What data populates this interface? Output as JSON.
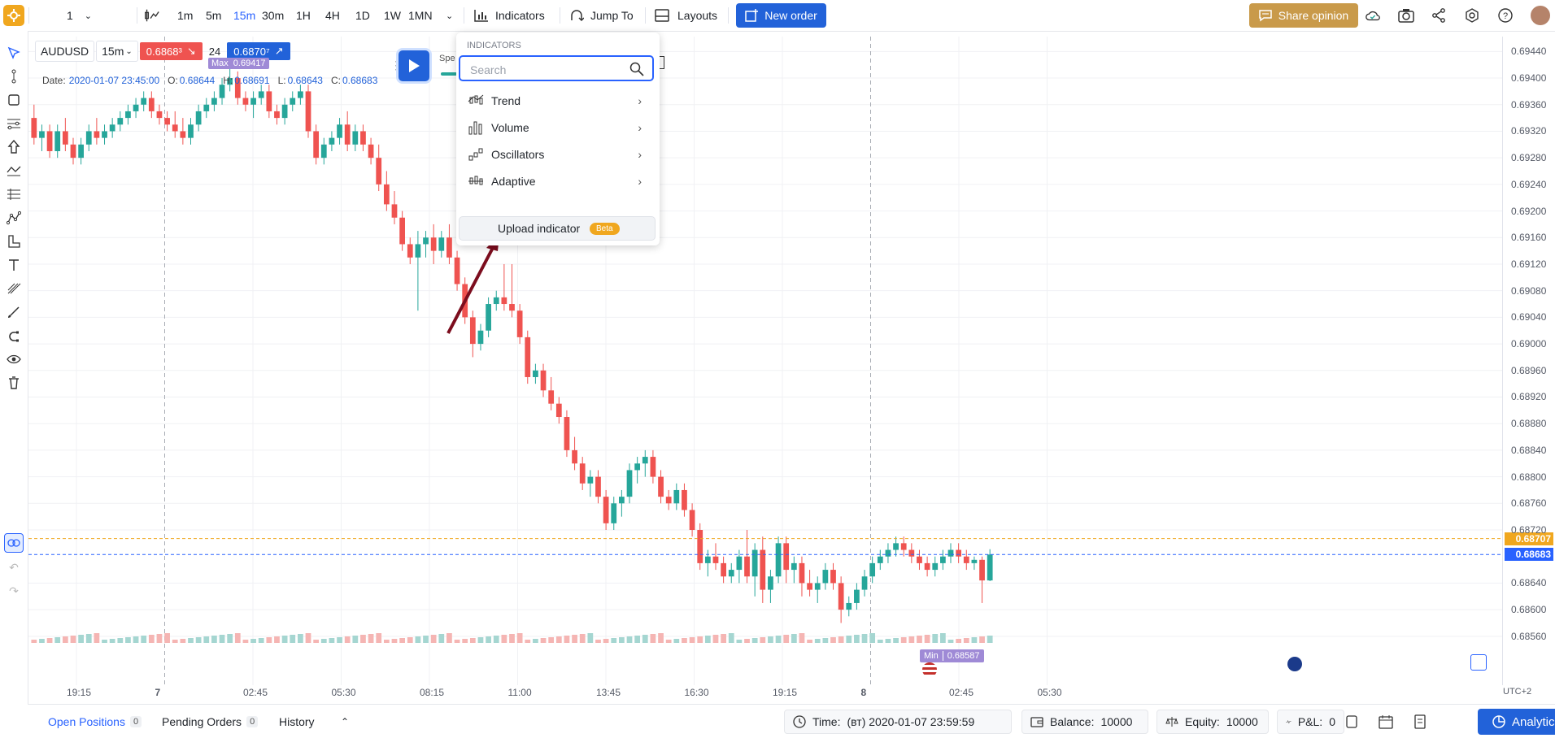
{
  "toolbar": {
    "chart_count": "1",
    "timeframes": [
      "1m",
      "5m",
      "15m",
      "30m",
      "1H",
      "4H",
      "1D",
      "1W",
      "1MN"
    ],
    "active_timeframe": "15m",
    "indicators_label": "Indicators",
    "jump_to_label": "Jump To",
    "layouts_label": "Layouts",
    "new_order_label": "New order",
    "share_opinion_label": "Share opinion"
  },
  "legend": {
    "symbol": "AUDUSD",
    "interval": "15m",
    "bid": "0.6868³",
    "spread": "24",
    "ask": "0.6870⁷",
    "max_label": "Max",
    "max_value": "0.69417",
    "speed_label": "Spe",
    "ohlc": {
      "date_label": "Date:",
      "date": "2020-01-07 23:45:00",
      "o_label": "O:",
      "o": "0.68644",
      "h_label": "H:",
      "h": "0.68691",
      "l_label": "L:",
      "l": "0.68643",
      "c_label": "C:",
      "c": "0.68683"
    }
  },
  "indicators_menu": {
    "header": "INDICATORS",
    "search_placeholder": "Search",
    "items": [
      {
        "label": "Trend",
        "icon": "trend-icon"
      },
      {
        "label": "Volume",
        "icon": "volume-icon"
      },
      {
        "label": "Oscillators",
        "icon": "oscillators-icon"
      },
      {
        "label": "Adaptive",
        "icon": "adaptive-icon"
      }
    ],
    "upload_label": "Upload indicator",
    "beta_label": "Beta"
  },
  "price_axis": {
    "labels": [
      "0.69440",
      "0.69400",
      "0.69360",
      "0.69320",
      "0.69280",
      "0.69240",
      "0.69200",
      "0.69160",
      "0.69120",
      "0.69080",
      "0.69040",
      "0.69000",
      "0.68960",
      "0.68920",
      "0.68880",
      "0.68840",
      "0.68800",
      "0.68760",
      "0.68720",
      "0.68640",
      "0.68600",
      "0.68560"
    ],
    "ask_tag": "0.68707",
    "bid_tag": "0.68683",
    "timezone": "UTC+2",
    "colors": {
      "ask": "#f0a71f",
      "bid": "#2962ff"
    }
  },
  "time_axis": {
    "labels": [
      "19:15",
      "7",
      "02:45",
      "05:30",
      "08:15",
      "11:00",
      "13:45",
      "16:30",
      "19:15",
      "8",
      "02:45",
      "05:30"
    ]
  },
  "min_marker": {
    "label": "Min",
    "value": "0.68587"
  },
  "bottom": {
    "open_positions_label": "Open Positions",
    "open_positions_count": "0",
    "pending_orders_label": "Pending Orders",
    "pending_orders_count": "0",
    "history_label": "History",
    "time_label": "Time:",
    "time_value": "(вт) 2020-01-07 23:59:59",
    "balance_label": "Balance:",
    "balance_value": "10000",
    "equity_label": "Equity:",
    "equity_value": "10000",
    "pnl_label": "P&L:",
    "pnl_value": "0",
    "analytics_label": "Analytics"
  },
  "chart_data": {
    "type": "candlestick",
    "symbol": "AUDUSD",
    "interval": "15m",
    "ylim": [
      0.6855,
      0.6946
    ],
    "candles": [
      [
        0.6934,
        0.6936,
        0.693,
        0.6931
      ],
      [
        0.6931,
        0.6933,
        0.6929,
        0.6932
      ],
      [
        0.6932,
        0.6933,
        0.6928,
        0.6929
      ],
      [
        0.6929,
        0.6933,
        0.6928,
        0.6932
      ],
      [
        0.6932,
        0.6934,
        0.6929,
        0.693
      ],
      [
        0.693,
        0.6931,
        0.6927,
        0.6928
      ],
      [
        0.6928,
        0.6931,
        0.6927,
        0.693
      ],
      [
        0.693,
        0.6933,
        0.6929,
        0.6932
      ],
      [
        0.6932,
        0.6934,
        0.693,
        0.6931
      ],
      [
        0.6931,
        0.6933,
        0.693,
        0.6932
      ],
      [
        0.6932,
        0.6934,
        0.6931,
        0.6933
      ],
      [
        0.6933,
        0.6935,
        0.6932,
        0.6934
      ],
      [
        0.6934,
        0.6936,
        0.6933,
        0.6935
      ],
      [
        0.6935,
        0.6937,
        0.6934,
        0.6936
      ],
      [
        0.6936,
        0.6938,
        0.6935,
        0.6937
      ],
      [
        0.6937,
        0.6938,
        0.6934,
        0.6935
      ],
      [
        0.6935,
        0.6936,
        0.6933,
        0.6934
      ],
      [
        0.6934,
        0.6935,
        0.6932,
        0.6933
      ],
      [
        0.6933,
        0.6935,
        0.6931,
        0.6932
      ],
      [
        0.6932,
        0.6934,
        0.693,
        0.6931
      ],
      [
        0.6931,
        0.6934,
        0.693,
        0.6933
      ],
      [
        0.6933,
        0.6936,
        0.6932,
        0.6935
      ],
      [
        0.6935,
        0.6937,
        0.6934,
        0.6936
      ],
      [
        0.6936,
        0.6938,
        0.6935,
        0.6937
      ],
      [
        0.6937,
        0.694,
        0.6936,
        0.6939
      ],
      [
        0.6939,
        0.6942,
        0.6938,
        0.694
      ],
      [
        0.694,
        0.6941,
        0.6936,
        0.6937
      ],
      [
        0.6937,
        0.6938,
        0.6935,
        0.6936
      ],
      [
        0.6936,
        0.6938,
        0.6934,
        0.6937
      ],
      [
        0.6937,
        0.6939,
        0.6936,
        0.6938
      ],
      [
        0.6938,
        0.6939,
        0.6934,
        0.6935
      ],
      [
        0.6935,
        0.6936,
        0.6933,
        0.6934
      ],
      [
        0.6934,
        0.6937,
        0.6933,
        0.6936
      ],
      [
        0.6936,
        0.6938,
        0.6935,
        0.6937
      ],
      [
        0.6937,
        0.6939,
        0.6936,
        0.6938
      ],
      [
        0.6938,
        0.6939,
        0.6931,
        0.6932
      ],
      [
        0.6932,
        0.6933,
        0.6927,
        0.6928
      ],
      [
        0.6928,
        0.6931,
        0.6927,
        0.693
      ],
      [
        0.693,
        0.6932,
        0.6929,
        0.6931
      ],
      [
        0.6931,
        0.6934,
        0.693,
        0.6933
      ],
      [
        0.6933,
        0.6935,
        0.6929,
        0.693
      ],
      [
        0.693,
        0.6933,
        0.6929,
        0.6932
      ],
      [
        0.6932,
        0.6933,
        0.6929,
        0.693
      ],
      [
        0.693,
        0.6931,
        0.6927,
        0.6928
      ],
      [
        0.6928,
        0.693,
        0.6923,
        0.6924
      ],
      [
        0.6924,
        0.6926,
        0.692,
        0.6921
      ],
      [
        0.6921,
        0.6923,
        0.6918,
        0.6919
      ],
      [
        0.6919,
        0.692,
        0.6914,
        0.6915
      ],
      [
        0.6915,
        0.6916,
        0.6912,
        0.6913
      ],
      [
        0.6913,
        0.6917,
        0.6905,
        0.6915
      ],
      [
        0.6915,
        0.6917,
        0.6913,
        0.6916
      ],
      [
        0.6916,
        0.6918,
        0.6912,
        0.6914
      ],
      [
        0.6914,
        0.6917,
        0.6913,
        0.6916
      ],
      [
        0.6916,
        0.6918,
        0.6912,
        0.6913
      ],
      [
        0.6913,
        0.6914,
        0.6908,
        0.6909
      ],
      [
        0.6909,
        0.691,
        0.6903,
        0.6904
      ],
      [
        0.6904,
        0.6905,
        0.6898,
        0.69
      ],
      [
        0.69,
        0.6903,
        0.6899,
        0.6902
      ],
      [
        0.6902,
        0.6907,
        0.6901,
        0.6906
      ],
      [
        0.6906,
        0.6908,
        0.6905,
        0.6907
      ],
      [
        0.6907,
        0.6912,
        0.6905,
        0.6906
      ],
      [
        0.6906,
        0.6912,
        0.6904,
        0.6905
      ],
      [
        0.6905,
        0.6906,
        0.69,
        0.6901
      ],
      [
        0.6901,
        0.6902,
        0.6894,
        0.6895
      ],
      [
        0.6895,
        0.6897,
        0.6894,
        0.6896
      ],
      [
        0.6896,
        0.6897,
        0.6892,
        0.6893
      ],
      [
        0.6893,
        0.6895,
        0.689,
        0.6891
      ],
      [
        0.6891,
        0.6892,
        0.6888,
        0.6889
      ],
      [
        0.6889,
        0.689,
        0.6883,
        0.6884
      ],
      [
        0.6884,
        0.6886,
        0.6881,
        0.6882
      ],
      [
        0.6882,
        0.6883,
        0.6878,
        0.6879
      ],
      [
        0.6879,
        0.6881,
        0.6877,
        0.688
      ],
      [
        0.688,
        0.6881,
        0.6876,
        0.6877
      ],
      [
        0.6877,
        0.6878,
        0.6872,
        0.6873
      ],
      [
        0.6873,
        0.6877,
        0.6872,
        0.6876
      ],
      [
        0.6876,
        0.6878,
        0.6874,
        0.6877
      ],
      [
        0.6877,
        0.6882,
        0.6876,
        0.6881
      ],
      [
        0.6881,
        0.6883,
        0.6879,
        0.6882
      ],
      [
        0.6882,
        0.6884,
        0.688,
        0.6883
      ],
      [
        0.6883,
        0.6884,
        0.6879,
        0.688
      ],
      [
        0.688,
        0.6881,
        0.6876,
        0.6877
      ],
      [
        0.6877,
        0.6878,
        0.6875,
        0.6876
      ],
      [
        0.6876,
        0.6879,
        0.6875,
        0.6878
      ],
      [
        0.6878,
        0.6879,
        0.6874,
        0.6875
      ],
      [
        0.6875,
        0.6876,
        0.6871,
        0.6872
      ],
      [
        0.6872,
        0.6873,
        0.6866,
        0.6867
      ],
      [
        0.6867,
        0.6869,
        0.6865,
        0.6868
      ],
      [
        0.6868,
        0.687,
        0.6866,
        0.6867
      ],
      [
        0.6867,
        0.6868,
        0.6864,
        0.6865
      ],
      [
        0.6865,
        0.6867,
        0.6864,
        0.6866
      ],
      [
        0.6866,
        0.6869,
        0.6864,
        0.6868
      ],
      [
        0.6868,
        0.6872,
        0.6864,
        0.6865
      ],
      [
        0.6865,
        0.687,
        0.6862,
        0.6869
      ],
      [
        0.6869,
        0.6871,
        0.6861,
        0.6863
      ],
      [
        0.6863,
        0.6866,
        0.6861,
        0.6865
      ],
      [
        0.6865,
        0.6871,
        0.6864,
        0.687
      ],
      [
        0.687,
        0.6871,
        0.6864,
        0.6866
      ],
      [
        0.6866,
        0.6868,
        0.6864,
        0.6867
      ],
      [
        0.6867,
        0.6868,
        0.6862,
        0.6864
      ],
      [
        0.6864,
        0.6866,
        0.6862,
        0.6863
      ],
      [
        0.6863,
        0.6865,
        0.6861,
        0.6864
      ],
      [
        0.6864,
        0.6867,
        0.6863,
        0.6866
      ],
      [
        0.6866,
        0.6867,
        0.6863,
        0.6864
      ],
      [
        0.6864,
        0.6865,
        0.6858,
        0.686
      ],
      [
        0.686,
        0.6862,
        0.6859,
        0.6861
      ],
      [
        0.6861,
        0.6864,
        0.686,
        0.6863
      ],
      [
        0.6863,
        0.6866,
        0.6862,
        0.6865
      ],
      [
        0.6865,
        0.6868,
        0.6864,
        0.6867
      ],
      [
        0.6867,
        0.6869,
        0.6866,
        0.6868
      ],
      [
        0.6868,
        0.687,
        0.6867,
        0.6869
      ],
      [
        0.6869,
        0.6871,
        0.6868,
        0.687
      ],
      [
        0.687,
        0.6871,
        0.6868,
        0.6869
      ],
      [
        0.6869,
        0.687,
        0.6867,
        0.6868
      ],
      [
        0.6868,
        0.6869,
        0.6866,
        0.6867
      ],
      [
        0.6867,
        0.6868,
        0.6865,
        0.6866
      ],
      [
        0.6866,
        0.6868,
        0.6865,
        0.6867
      ],
      [
        0.6867,
        0.6869,
        0.6866,
        0.6868
      ],
      [
        0.6868,
        0.687,
        0.6867,
        0.6869
      ],
      [
        0.6869,
        0.687,
        0.6867,
        0.6868
      ],
      [
        0.6868,
        0.6869,
        0.6866,
        0.6867
      ],
      [
        0.6867,
        0.6868,
        0.6866,
        0.68675
      ],
      [
        0.68675,
        0.6868,
        0.6861,
        0.68644
      ],
      [
        0.68644,
        0.68691,
        0.68643,
        0.68683
      ]
    ],
    "ask_line": 0.68707,
    "bid_line": 0.68683,
    "max": 0.69417,
    "min": 0.68587,
    "grid": true
  }
}
